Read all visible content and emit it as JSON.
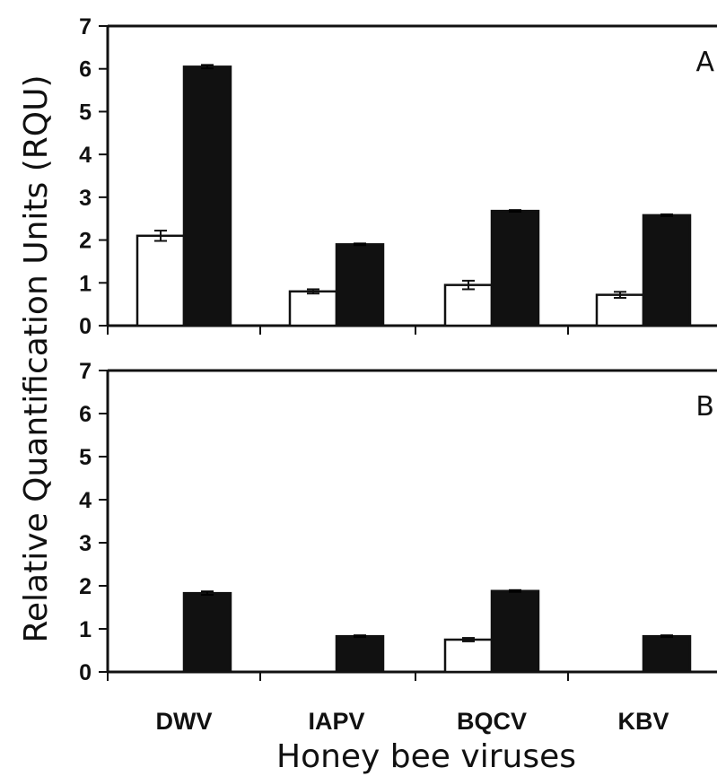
{
  "chart_data": {
    "type": "bar",
    "categories": [
      "DWV",
      "IAPV",
      "BQCV",
      "KBV"
    ],
    "ylabel": "Relative Quantification Units (RQU)",
    "xlabel": "Honey bee viruses",
    "ylim": [
      0,
      7
    ],
    "yticks": [
      "0",
      "1",
      "2",
      "3",
      "4",
      "5",
      "6",
      "7"
    ],
    "colors": {
      "series_open": "#ffffff",
      "series_filled": "#111111",
      "axis": "#111111"
    },
    "panels": [
      {
        "label": "A",
        "series": [
          {
            "values": [
              2.1,
              0.8,
              0.95,
              0.72
            ],
            "errors": [
              0.12,
              0.05,
              0.1,
              0.07
            ],
            "style": "open"
          },
          {
            "values": [
              6.05,
              1.9,
              2.68,
              2.58
            ],
            "errors": [
              0.04,
              0.02,
              0.02,
              0.02
            ],
            "style": "filled"
          }
        ]
      },
      {
        "label": "B",
        "series": [
          {
            "values": [
              0,
              0,
              0.75,
              0
            ],
            "errors": [
              0,
              0,
              0.04,
              0
            ],
            "style": "open"
          },
          {
            "values": [
              1.83,
              0.83,
              1.88,
              0.83
            ],
            "errors": [
              0.04,
              0.02,
              0.02,
              0.02
            ],
            "style": "filled"
          }
        ]
      }
    ]
  }
}
